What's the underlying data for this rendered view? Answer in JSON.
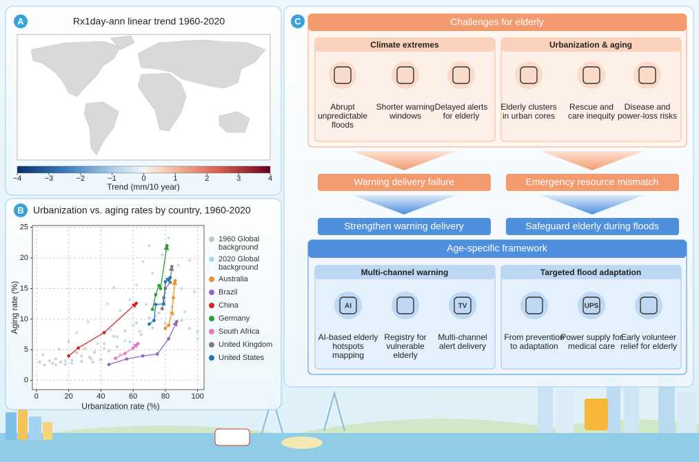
{
  "panel_a": {
    "label": "A",
    "title": "Rx1day-ann linear trend 1960-2020",
    "colorbar": {
      "label": "Trend (mm/10 year)",
      "range": [
        -4,
        4
      ],
      "ticks": [
        {
          "value": -4,
          "label": "−4"
        },
        {
          "value": -3,
          "label": "−3"
        },
        {
          "value": -2,
          "label": "−2"
        },
        {
          "value": -1,
          "label": "−1"
        },
        0,
        1,
        2,
        3,
        4
      ]
    }
  },
  "chart_data": {
    "type": "scatter",
    "panel_label": "B",
    "title": "Urbanization vs. aging rates by country, 1960-2020",
    "x_label": "Urbanization rate (%)",
    "y_label": "Aging rate (%)",
    "xlim": [
      -2.5,
      104
    ],
    "ylim": [
      -1.5,
      25.3
    ],
    "xticks": [
      0,
      20,
      40,
      60,
      80,
      100
    ],
    "yticks": [
      0,
      5,
      10,
      15,
      20,
      25
    ],
    "grid": true,
    "series": [
      {
        "name": "1960 Global background",
        "color": "#c4c4c4",
        "lines": false,
        "x": [
          2,
          5,
          8,
          10,
          12,
          15,
          18,
          22,
          25,
          28,
          30,
          33,
          36,
          40,
          42,
          45,
          48,
          50,
          55,
          58,
          62,
          65,
          70,
          72,
          76,
          80,
          85,
          90,
          95,
          100,
          4,
          14,
          20,
          35,
          52
        ],
        "values": [
          3,
          2.5,
          3.2,
          2.8,
          3.5,
          3.0,
          2.6,
          3.3,
          4.5,
          3.1,
          5.2,
          3.8,
          4.6,
          3.4,
          6.0,
          4.8,
          7.2,
          5.5,
          8.1,
          6.3,
          9.4,
          7.5,
          10.2,
          8.6,
          11.0,
          9.3,
          10.8,
          9.8,
          8.5,
          8.0,
          4.2,
          5.1,
          6.4,
          3.0,
          4.2
        ]
      },
      {
        "name": "2020 Global background",
        "color": "#a9d9ec",
        "lines": false,
        "x": [
          12,
          18,
          22,
          28,
          34,
          38,
          42,
          46,
          50,
          52,
          55,
          58,
          60,
          62,
          64,
          66,
          68,
          70,
          72,
          74,
          78,
          80,
          82,
          84,
          88,
          90,
          92,
          95,
          98,
          100,
          25,
          32,
          44,
          48
        ],
        "values": [
          2.5,
          3.2,
          2.8,
          4.0,
          3.5,
          6.0,
          5.2,
          8.3,
          7.1,
          11.4,
          6.5,
          13.2,
          9.0,
          15.6,
          8.0,
          19.4,
          12.4,
          22.0,
          17.5,
          10.5,
          20.5,
          14.2,
          23.3,
          12.0,
          18.8,
          15.0,
          11.2,
          19.6,
          14.5,
          6.8,
          7.8,
          9.6,
          12.5,
          15.2
        ]
      },
      {
        "name": "Australia",
        "color": "#f28e2b",
        "lines": true,
        "x": [
          80,
          82,
          84,
          85,
          86
        ],
        "values": [
          8.5,
          9,
          11,
          13.5,
          16.3
        ]
      },
      {
        "name": "Brazil",
        "color": "#9467bd",
        "lines": true,
        "x": [
          45,
          56,
          66,
          75,
          82,
          87
        ],
        "values": [
          2.6,
          3.5,
          4.0,
          4.3,
          6.8,
          9.6
        ]
      },
      {
        "name": "China",
        "color": "#d62728",
        "lines": true,
        "x": [
          20,
          26,
          42,
          62
        ],
        "values": [
          4,
          5.3,
          7.8,
          12.6
        ]
      },
      {
        "name": "Germany",
        "color": "#2ca02c",
        "lines": true,
        "x": [
          72,
          74,
          76,
          77,
          81
        ],
        "values": [
          11.6,
          14,
          15.5,
          15,
          22
        ]
      },
      {
        "name": "South Africa",
        "color": "#e377c2",
        "lines": true,
        "x": [
          49,
          55,
          60,
          63
        ],
        "values": [
          3.6,
          4.4,
          5.3,
          6
        ]
      },
      {
        "name": "United Kingdom",
        "color": "#7f7f7f",
        "lines": true,
        "x": [
          78,
          79,
          80,
          83,
          84
        ],
        "values": [
          11.7,
          13.5,
          15,
          16,
          18.6
        ]
      },
      {
        "name": "United States",
        "color": "#1f77b4",
        "lines": true,
        "x": [
          70,
          73,
          74,
          79,
          80,
          83
        ],
        "values": [
          9.2,
          9.8,
          12.4,
          12.5,
          16.1,
          16.8
        ]
      }
    ]
  },
  "panel_c": {
    "label": "C",
    "challenges": {
      "title": "Challenges for elderly",
      "groups": [
        {
          "title": "Climate extremes",
          "items": [
            {
              "label": "Abrupt unpredictable floods"
            },
            {
              "label": "Shorter warning windows"
            },
            {
              "label": "Delayed alerts for elderly"
            }
          ]
        },
        {
          "title": "Urbanization & aging",
          "items": [
            {
              "label": "Elderly clusters in urban cores"
            },
            {
              "label": "Rescue and care inequity"
            },
            {
              "label": "Disease and power-loss risks"
            }
          ]
        }
      ]
    },
    "failures": [
      "Warning delivery failure",
      "Emergency resource mismatch"
    ],
    "strategies": [
      "Strengthen warning delivery",
      "Safeguard elderly during floods"
    ],
    "framework": {
      "title": "Age-specific framework",
      "groups": [
        {
          "title": "Multi-channel warning",
          "items": [
            {
              "label": "AI-based elderly hotspots mapping",
              "icon_text": "AI"
            },
            {
              "label": "Registry for vulnerable elderly"
            },
            {
              "label": "Multi-channel alert delivery",
              "icon_text": "TV"
            }
          ]
        },
        {
          "title": "Targeted flood adaptation",
          "items": [
            {
              "label": "From prevention to adaptation"
            },
            {
              "label": "Power supply for medical care",
              "icon_text": "UPS"
            },
            {
              "label": "Early volunteer relief for elderly"
            }
          ]
        }
      ]
    }
  }
}
